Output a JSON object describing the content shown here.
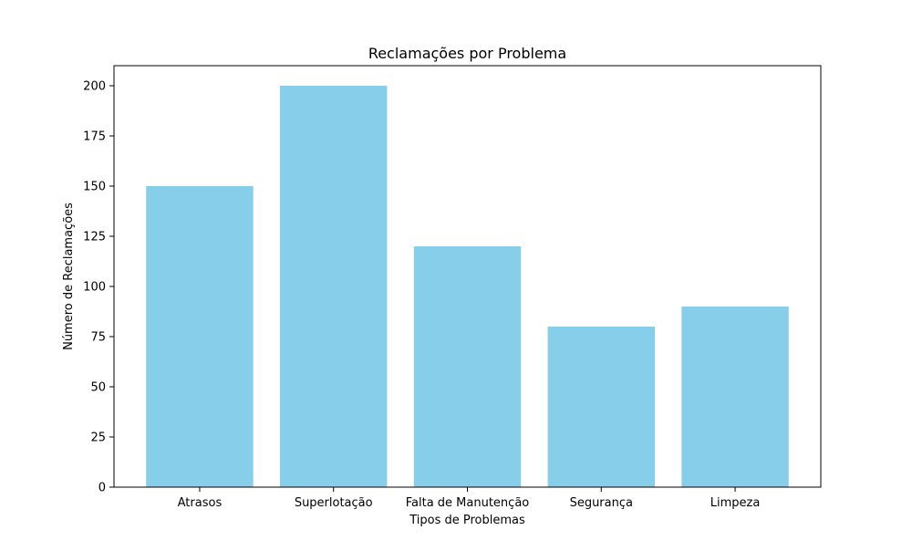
{
  "chart_data": {
    "type": "bar",
    "title": "Reclamações por Problema",
    "xlabel": "Tipos de Problemas",
    "ylabel": "Número de Reclamações",
    "categories": [
      "Atrasos",
      "Superlotação",
      "Falta de Manutenção",
      "Segurança",
      "Limpeza"
    ],
    "values": [
      150,
      200,
      120,
      80,
      90
    ],
    "ylim": [
      0,
      210
    ],
    "yticks": [
      0,
      25,
      50,
      75,
      100,
      125,
      150,
      175,
      200
    ],
    "ytick_labels": [
      "0",
      "25",
      "50",
      "75",
      "100",
      "125",
      "150",
      "175",
      "200"
    ],
    "bar_color": "#87ceeb",
    "grid": false,
    "legend": "none"
  }
}
